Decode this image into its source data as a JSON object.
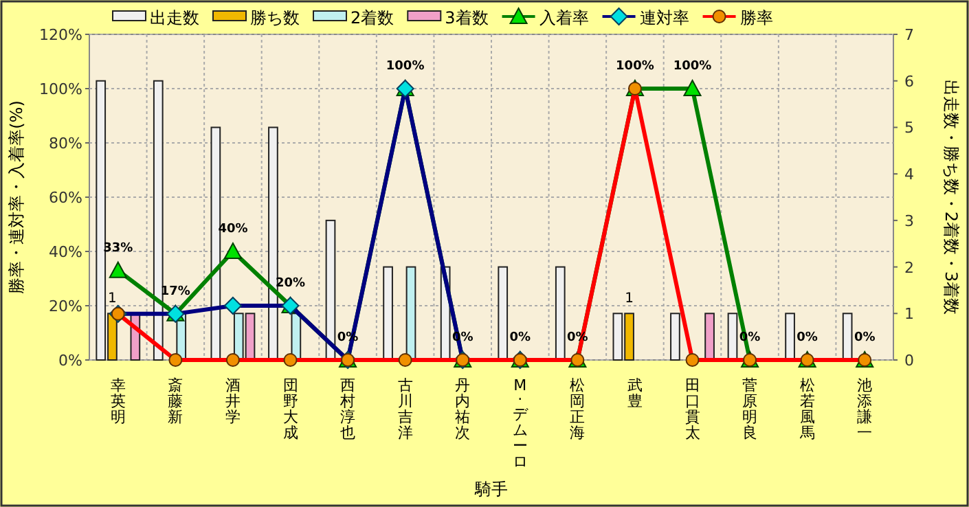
{
  "chart_data": {
    "type": "bar",
    "categories": [
      "幸英明",
      "斎藤新",
      "酒井学",
      "団野大成",
      "西村淳也",
      "古川吉洋",
      "丹内祐次",
      "M. デムーロ",
      "松岡正海",
      "武豊",
      "田口貫太",
      "菅原明良",
      "松若風馬",
      "池添謙一"
    ],
    "xlabel": "騎手",
    "ylabel": "勝率・連対率・入着率(%)",
    "y2label": "出走数・勝ち数・2着数・3着数",
    "ylim": [
      0,
      120
    ],
    "yticks": [
      {
        "value": 0,
        "label": "0%"
      },
      {
        "value": 20,
        "label": "20%"
      },
      {
        "value": 40,
        "label": "40%"
      },
      {
        "value": 60,
        "label": "60%"
      },
      {
        "value": 80,
        "label": "80%"
      },
      {
        "value": 100,
        "label": "100%"
      },
      {
        "value": 120,
        "label": "120%"
      }
    ],
    "y2lim": [
      0,
      7
    ],
    "y2ticks": [
      0,
      1,
      2,
      3,
      4,
      5,
      6,
      7
    ],
    "grid": true,
    "legend": "top",
    "series": [
      {
        "name": "出走数",
        "axis": "y2",
        "color": "#f0f0f0",
        "values": [
          6,
          6,
          5,
          5,
          3,
          2,
          2,
          2,
          2,
          1,
          1,
          1,
          1,
          1
        ]
      },
      {
        "name": "勝ち数",
        "axis": "y2",
        "color": "#f0b800",
        "values": [
          1,
          0,
          0,
          0,
          0,
          0,
          0,
          0,
          0,
          1,
          0,
          0,
          0,
          0
        ],
        "value_labels": [
          "1",
          null,
          null,
          null,
          null,
          null,
          null,
          null,
          null,
          "1",
          null,
          null,
          null,
          null
        ]
      },
      {
        "name": "2着数",
        "axis": "y2",
        "color": "#c0f0f0",
        "values": [
          0,
          1,
          1,
          1,
          0,
          2,
          0,
          0,
          0,
          0,
          0,
          0,
          0,
          0
        ]
      },
      {
        "name": "3着数",
        "axis": "y2",
        "color": "#f0a0c8",
        "values": [
          1,
          0,
          1,
          0,
          0,
          0,
          0,
          0,
          0,
          0,
          1,
          0,
          0,
          0
        ]
      },
      {
        "name": "入着率",
        "type": "line",
        "color": "#008000",
        "marker": "triangle",
        "values": [
          33,
          17,
          40,
          20,
          0,
          100,
          0,
          0,
          0,
          100,
          100,
          0,
          0,
          0
        ],
        "value_labels": [
          "33%",
          "17%",
          "40%",
          "20%",
          "0%",
          "100%",
          "0%",
          "0%",
          "0%",
          "100%",
          "100%",
          "0%",
          "0%",
          "0%"
        ]
      },
      {
        "name": "連対率",
        "type": "line",
        "color": "#000080",
        "marker": "diamond",
        "values": [
          17,
          17,
          20,
          20,
          0,
          100,
          0,
          0,
          null,
          null,
          null,
          null,
          null,
          null
        ]
      },
      {
        "name": "勝率",
        "type": "line",
        "color": "#ff0000",
        "marker": "circle",
        "values": [
          17,
          0,
          0,
          0,
          0,
          0,
          0,
          0,
          0,
          100,
          0,
          0,
          0,
          0
        ]
      }
    ]
  }
}
